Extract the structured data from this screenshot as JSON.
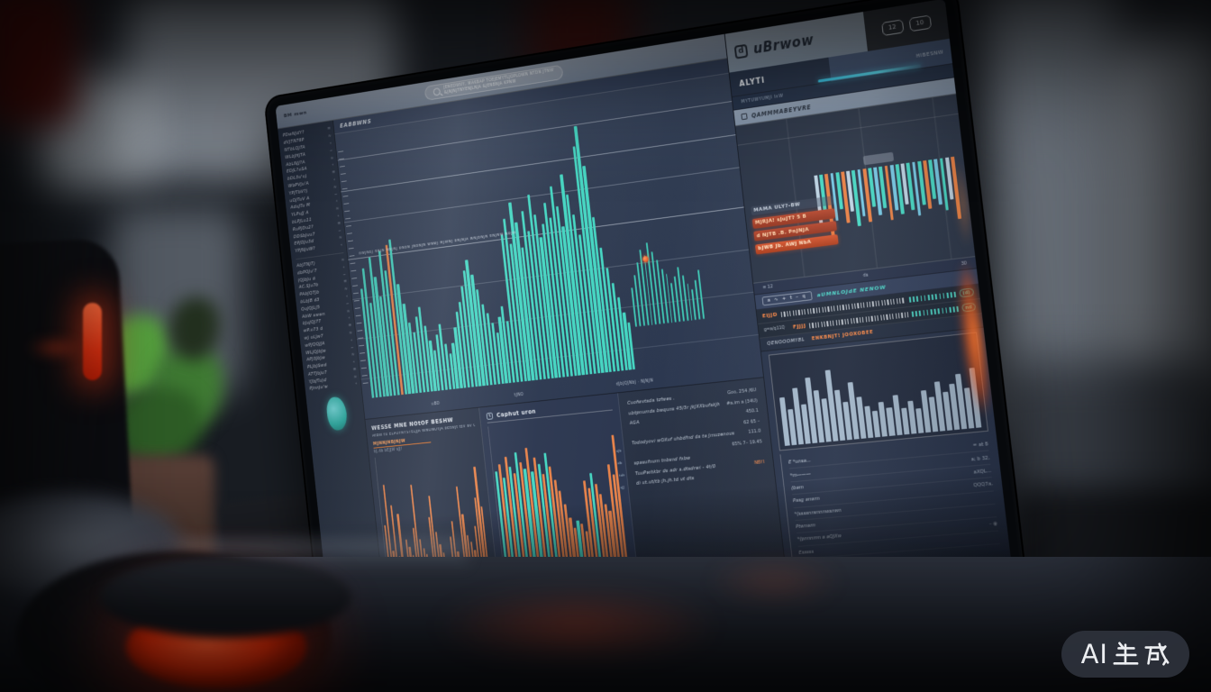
{
  "watermark": {
    "label": "AI生成",
    "prefix": "AI"
  },
  "colors": {
    "teal": "#45d6c2",
    "orange": "#e8834a",
    "cyan": "#35c9ec",
    "steel": "#a9bdd0",
    "alert_red": "#b5472e"
  },
  "topbar": {
    "left_label": "BM mwn",
    "search_line1": "JENEDWVY, MAKBAP TOEJEMYTLJOPLOWN NTDN JTNW",
    "search_line2": "&JNJNJTNYENJLNJA &JENBNJA KPNW"
  },
  "brand": {
    "icon": "d",
    "name": "uBrwow",
    "buttons": [
      "12",
      "10"
    ]
  },
  "tabs": {
    "active": "ALYTI",
    "value": "HIBESNW",
    "caption": "MYTUWYUMJI InW",
    "subheader": "QAMMMABEYVRE"
  },
  "sidebar": {
    "top_rows": [
      {
        "label": "PDwNJdY?",
        "icon": "≡"
      },
      {
        "label": "dVJTNT6P",
        "icon": "≈"
      },
      {
        "label": "NTbLQJTA",
        "icon": "∘"
      },
      {
        "label": "WLbJHJTA",
        "icon": "~"
      },
      {
        "label": "AbLNJJ?A",
        "icon": "≈"
      },
      {
        "label": "EDJL?uSA",
        "icon": "∘"
      },
      {
        "label": "bDL3u'u)",
        "icon": "≡"
      },
      {
        "label": "WbPVJu'A",
        "icon": "∘"
      },
      {
        "label": "YPJTbV?)",
        "icon": "≈"
      },
      {
        "label": "uOJTuV A",
        "icon": "~"
      },
      {
        "label": "AduJTu M",
        "icon": "∘"
      },
      {
        "label": "YLPuJJ A",
        "icon": "≈"
      },
      {
        "label": "bLPJLu11",
        "icon": "∘"
      },
      {
        "label": "RuPJDu2?",
        "icon": "≡"
      },
      {
        "label": "DDSbJuu7",
        "icon": "~"
      },
      {
        "label": "EPJDJu3d",
        "icon": "≈"
      },
      {
        "label": "YPJNJuW?",
        "icon": "∘"
      }
    ],
    "bottom_rows": [
      {
        "label": "AbJTNJT)",
        "icon": "≈"
      },
      {
        "label": "dbPOJu'7",
        "icon": "∘"
      },
      {
        "label": "JQJbJu d",
        "icon": "~"
      },
      {
        "label": "AC.SJu7b",
        "icon": "≡"
      },
      {
        "label": "PAbJQTJb",
        "icon": "≈"
      },
      {
        "label": "bLbJB d3",
        "icon": "∘"
      },
      {
        "label": "QuJQJLJ5",
        "icon": "~"
      },
      {
        "label": "AbW swwn",
        "icon": "≈"
      },
      {
        "label": "bJuJQJ7T",
        "icon": "∘"
      },
      {
        "label": "wP.u73 d",
        "icon": "≡"
      },
      {
        "label": "wJ uLJw7",
        "icon": "≈"
      },
      {
        "label": "wPJQQJJA",
        "icon": "∘"
      },
      {
        "label": "WLJQJbJw",
        "icon": "~"
      },
      {
        "label": "APJ3JbJw",
        "icon": "≈"
      },
      {
        "label": "PLJbJSwd",
        "icon": "∘"
      },
      {
        "label": "ATTJbJu7",
        "icon": "≡"
      },
      {
        "label": "YJbJTu)d",
        "icon": "≈"
      },
      {
        "label": "PJnnJu'w",
        "icon": "∘"
      }
    ],
    "footer": "EAB.JB.JDJNJB"
  },
  "main_chart": {
    "title": "EABBWNS",
    "annotation": "dWJNbJ dNJN NNJNJ bNbN JNbNJN wNwJ MJWNJ bNJNJA wNJbNJN dNJNW NbJW",
    "x_labels": [
      "uBD",
      "tJNO",
      "dJbJQJNbJ · NJNJN"
    ]
  },
  "alerts": [
    {
      "text": "MAMA ULY?-BW",
      "style": "plain"
    },
    {
      "text": "MJRJA! sJuJT? 5 B",
      "style": "badge"
    },
    {
      "text": "d NJTB .B. PnJNJA",
      "style": "badge"
    },
    {
      "text": "bJWB Jb. AWJ NbA",
      "style": "badge-bright"
    }
  ],
  "right_panel": {
    "footer_icons": [
      "≡ 12",
      "ds",
      "30"
    ],
    "toolbar_icons": "a ∿ + t – q",
    "toolbar_label": "aUMNLOJdE NENOW",
    "tape_side": "g=a/q11Q",
    "tapes": [
      {
        "tag": "EIJJD",
        "badge": "(d)"
      },
      {
        "tag": "FJJJJ",
        "badge": "nd"
      }
    ],
    "row_label": "QENOOOMYBL",
    "row_value": "ENKBNJT! JOOXOBEE",
    "list": [
      {
        "label": "E *unsa...",
        "value": "= at 8"
      },
      {
        "label": "*m———",
        "value": "a; b 32,"
      },
      {
        "label": "(bam",
        "value": "aXQL..."
      },
      {
        "label": "Pasg anwm",
        "value": "QQQ7a,"
      },
      {
        "label": "*(ssssnnsnnnwsnwn",
        "value": ""
      },
      {
        "label": "Ptwnwm",
        "value": ""
      },
      {
        "label": "*(pnnnmn a aQJXw",
        "value": "– ◉"
      },
      {
        "label": "Esssss",
        "value": ""
      }
    ]
  },
  "panels": {
    "orange": {
      "title": "WESSE MNE NOtOF BESHW",
      "subtitle": "AtBW tu ELPOYNYSTELJJA WNONOYJA bEtWJt tzV aV QbOW",
      "tag": "MJNNJNBJNJW",
      "sub2": "bJ.db bEJJW sJJ!",
      "axis_left": "d 3.bJ",
      "axis_right": "bJW?"
    },
    "mixed": {
      "title": "Caphut uron",
      "icon": "↯",
      "side_labels": [
        "sJb",
        "db",
        "tub",
        "sJJ"
      ],
      "axis_left": "dbJ",
      "axis_right": "tJJ0"
    },
    "news": {
      "rows": [
        {
          "label": "Cuofwvtsda tzfwes .",
          "value": "Goo, 254 /6U"
        },
        {
          "label": "ubtpnumds bwquns 45/3r jkJXXbufskJh",
          "value": "#a.im a (34U)"
        },
        {
          "label": "AGA",
          "value": "450.1"
        },
        {
          "label": "",
          "value": "62 65 –"
        },
        {
          "label": "Tododyovi wOXuf uhbdfnd ds ta Jmuzenous",
          "value": "111.0"
        },
        {
          "label": "",
          "value": "65% 7– 19.45"
        },
        {
          "label": "spasufnum tnbsnd fxbw",
          "value": ""
        },
        {
          "label": "TuuPwitkbr ds adr s.dtsdrwi - 4t/0",
          "value": "NBYI",
          "value_color": "#f08a4e"
        },
        {
          "label": "di ut.ut/tb jh.jh.td ut dts",
          "value": ""
        }
      ]
    }
  },
  "charts": {
    "main": {
      "type": "bar",
      "color": "#45d6c2",
      "accent": "#e8834a",
      "orange_indices": [
        8
      ],
      "values": [
        44,
        52,
        38,
        56,
        48,
        40,
        58,
        50,
        60,
        62,
        44,
        36,
        28,
        24,
        30,
        34,
        26,
        20,
        16,
        22,
        26,
        18,
        14,
        18,
        24,
        30,
        34,
        40,
        46,
        50,
        44,
        38,
        32,
        28,
        24,
        20,
        26,
        30,
        24,
        58,
        64,
        54,
        70,
        62,
        52,
        66,
        58,
        72,
        64,
        55,
        60,
        68,
        62,
        74,
        66,
        58,
        78,
        70,
        62,
        54,
        88,
        96,
        80,
        60,
        48,
        40,
        34,
        28,
        22,
        18
      ]
    },
    "candles": {
      "type": "bar",
      "color": "#3fc7b4",
      "values": [
        26,
        34,
        42,
        50,
        46,
        54,
        48,
        42,
        36,
        32,
        26,
        30,
        36,
        30,
        24,
        20,
        26,
        32
      ]
    },
    "mini": {
      "type": "bar",
      "values": [
        68,
        54,
        78,
        60,
        46,
        64,
        50,
        70,
        58,
        66,
        48,
        60,
        52,
        68,
        56,
        62,
        50,
        58,
        66,
        54,
        60,
        48,
        56,
        64,
        52,
        76
      ],
      "colors": [
        "#bcd2e2",
        "#45d6c2",
        "#e87f43",
        "#74c7e3",
        "#45d6c2",
        "#e87f43",
        "#bcd2e2",
        "#45d6c2",
        "#74c7e3",
        "#e87f43",
        "#45d6c2",
        "#74c7e3",
        "#45d6c2",
        "#e87f43",
        "#74c7e3",
        "#45d6c2",
        "#bcd2e2",
        "#45d6c2",
        "#74c7e3",
        "#45d6c2",
        "#e87f43",
        "#45d6c2",
        "#74c7e3",
        "#45d6c2",
        "#bcd2e2",
        "#e87f43"
      ]
    },
    "orange": {
      "type": "bar",
      "color": "#e8834a",
      "values": [
        55,
        82,
        38,
        68,
        34,
        62,
        30,
        45,
        40,
        34,
        52,
        80,
        44,
        38,
        34,
        30,
        58,
        72,
        48,
        40,
        34,
        30,
        26,
        44,
        54,
        34,
        30,
        76,
        58,
        44,
        40,
        34,
        50,
        68,
        88,
        62
      ]
    },
    "mixed": {
      "type": "bar",
      "values": [
        74,
        78,
        70,
        82,
        76,
        72,
        84,
        78,
        74,
        86,
        72,
        80,
        76,
        70,
        82,
        74,
        66,
        60,
        52,
        44,
        38,
        42,
        40,
        36,
        64,
        60,
        68,
        62,
        56,
        50,
        46,
        72,
        66,
        88
      ],
      "colors": [
        "#45d6c2",
        "#e8834a",
        "#45d6c2",
        "#e8834a",
        "#45d6c2",
        "#e8834a",
        "#45d6c2",
        "#e8834a",
        "#45d6c2",
        "#e8834a",
        "#45d6c2",
        "#e8834a",
        "#45d6c2",
        "#e8834a",
        "#45d6c2",
        "#e8834a",
        "#e8834a",
        "#e8834a",
        "#e8834a",
        "#e8834a",
        "#e8834a",
        "#45d6c2",
        "#e8834a",
        "#e8834a",
        "#e8834a",
        "#e8834a",
        "#45d6c2",
        "#e8834a",
        "#e8834a",
        "#e8834a",
        "#e8834a",
        "#e8834a",
        "#e8834a",
        "#e8834a"
      ]
    },
    "hist": {
      "type": "bar",
      "color": "#a9bdd0",
      "values": [
        56,
        42,
        66,
        46,
        76,
        60,
        50,
        82,
        58,
        44,
        66,
        48,
        36,
        30,
        40,
        32,
        46,
        30,
        38,
        28,
        48,
        40,
        56,
        44,
        52,
        62,
        46,
        68
      ]
    }
  }
}
